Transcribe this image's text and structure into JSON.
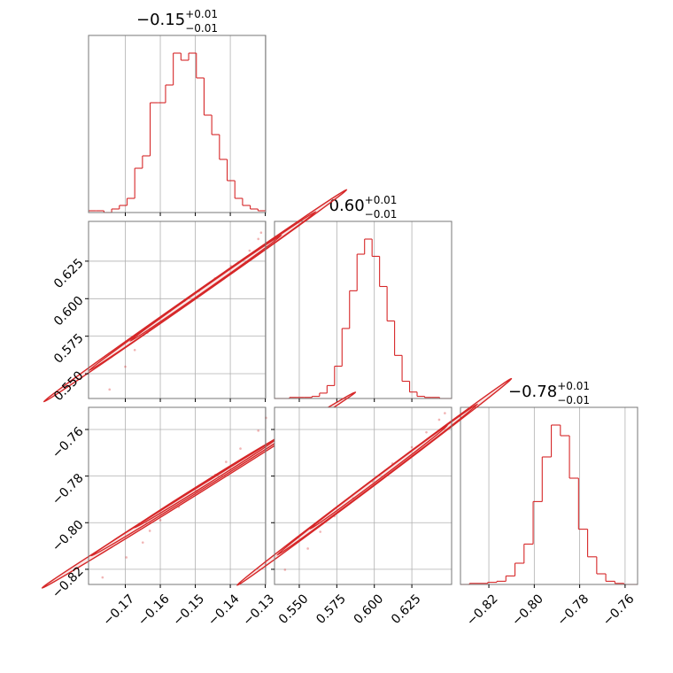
{
  "figure": {
    "colors": {
      "series": "#d62728",
      "frame": "#777777",
      "grid": "#b0b0b0",
      "background": "#ffffff"
    }
  },
  "chart_data": [
    {
      "id": "hist_p1",
      "type": "histogram",
      "title": {
        "median": "−0.15",
        "plus": "+0.01",
        "minus": "−0.01"
      },
      "x_range": [
        -0.1805,
        -0.1299
      ],
      "xticks": [
        -0.17,
        -0.16,
        -0.15,
        -0.14,
        -0.13
      ],
      "xtick_labels": [
        "−0.17",
        "−0.16",
        "−0.15",
        "−0.14",
        "−0.13"
      ],
      "bin_edges": [
        -0.1805,
        -0.1783,
        -0.1761,
        -0.1739,
        -0.1717,
        -0.1695,
        -0.1673,
        -0.1651,
        -0.1629,
        -0.1607,
        -0.1585,
        -0.1563,
        -0.1541,
        -0.1519,
        -0.1497,
        -0.1475,
        -0.1453,
        -0.1431,
        -0.1409,
        -0.1387,
        -0.1365,
        -0.1343,
        -0.1321,
        -0.1299
      ],
      "counts": [
        1,
        1,
        0,
        2,
        4,
        8,
        25,
        32,
        62,
        62,
        72,
        90,
        86,
        90,
        76,
        55,
        44,
        30,
        18,
        8,
        4,
        2,
        1
      ],
      "grid": true
    },
    {
      "id": "hist_p2",
      "type": "histogram",
      "title": {
        "median": "0.60",
        "plus": "+0.01",
        "minus": "−0.01"
      },
      "x_range": [
        0.5335,
        0.6515
      ],
      "xticks": [
        0.55,
        0.575,
        0.6,
        0.625
      ],
      "xtick_labels": [
        "0.550",
        "0.575",
        "0.600",
        "0.625"
      ],
      "bin_edges": [
        0.5335,
        0.5385,
        0.5435,
        0.5485,
        0.5535,
        0.5585,
        0.5635,
        0.5685,
        0.5735,
        0.5785,
        0.5835,
        0.5885,
        0.5935,
        0.5985,
        0.6035,
        0.6085,
        0.6135,
        0.6185,
        0.6235,
        0.6285,
        0.6335,
        0.6385,
        0.6435,
        0.6515
      ],
      "counts": [
        0,
        0,
        1,
        1,
        1,
        2,
        5,
        12,
        30,
        65,
        100,
        134,
        148,
        132,
        104,
        72,
        40,
        16,
        6,
        2,
        1,
        1,
        0
      ],
      "grid": true
    },
    {
      "id": "hist_p3",
      "type": "histogram",
      "title": {
        "median": "−0.78",
        "plus": "+0.01",
        "minus": "−0.01"
      },
      "x_range": [
        -0.8325,
        -0.7545
      ],
      "xticks": [
        -0.82,
        -0.8,
        -0.78,
        -0.76
      ],
      "xtick_labels": [
        "−0.82",
        "−0.80",
        "−0.78",
        "−0.76"
      ],
      "bin_edges": [
        -0.8325,
        -0.8285,
        -0.8245,
        -0.8205,
        -0.8165,
        -0.8125,
        -0.8085,
        -0.8045,
        -0.8005,
        -0.7965,
        -0.7925,
        -0.7885,
        -0.7845,
        -0.7805,
        -0.7765,
        -0.7725,
        -0.7685,
        -0.7645,
        -0.7605,
        -0.7545
      ],
      "counts": [
        0,
        1,
        1,
        2,
        3,
        8,
        20,
        38,
        78,
        120,
        150,
        140,
        100,
        52,
        26,
        10,
        3,
        1,
        0
      ],
      "grid": true
    },
    {
      "id": "scatter_p1_p2",
      "type": "scatter",
      "x_range": [
        -0.1805,
        -0.1299
      ],
      "y_range": [
        0.5335,
        0.6515
      ],
      "xticks": [
        -0.17,
        -0.16,
        -0.15,
        -0.14,
        -0.13
      ],
      "yticks": [
        0.55,
        0.575,
        0.6,
        0.625
      ],
      "ytick_labels": [
        "0.550",
        "0.575",
        "0.600",
        "0.625"
      ],
      "points": [
        [
          -0.1745,
          0.5395
        ],
        [
          -0.17,
          0.5547
        ],
        [
          -0.1673,
          0.5658
        ],
        [
          -0.1637,
          0.5774
        ],
        [
          -0.163,
          0.5798
        ],
        [
          -0.1572,
          0.5918
        ],
        [
          -0.1531,
          0.5986
        ],
        [
          -0.149,
          0.6051
        ],
        [
          -0.1444,
          0.6135
        ],
        [
          -0.1398,
          0.6217
        ],
        [
          -0.1345,
          0.632
        ],
        [
          -0.132,
          0.6398
        ],
        [
          -0.1312,
          0.644
        ]
      ],
      "contours": [
        {
          "level": 1,
          "center": [
            -0.15,
            0.602
          ],
          "angle": 35.0,
          "rx": 0.024,
          "ry": 0.003
        },
        {
          "level": 2,
          "center": [
            -0.148,
            0.605
          ],
          "angle": 35.0,
          "rx": 0.018,
          "ry": 0.0022
        },
        {
          "level": 3,
          "center": [
            -0.147,
            0.607
          ],
          "angle": 35.0,
          "rx": 0.012,
          "ry": 0.0016
        }
      ],
      "grid": true
    },
    {
      "id": "scatter_p1_p3",
      "type": "scatter",
      "x_range": [
        -0.1805,
        -0.1299
      ],
      "y_range": [
        -0.8265,
        -0.7505
      ],
      "xticks": [
        -0.17,
        -0.16,
        -0.15,
        -0.14,
        -0.13
      ],
      "xtick_labels": [
        "−0.17",
        "−0.16",
        "−0.15",
        "−0.14",
        "−0.13"
      ],
      "yticks": [
        -0.82,
        -0.8,
        -0.78,
        -0.76
      ],
      "ytick_labels": [
        "−0.82",
        "−0.80",
        "−0.78",
        "−0.76"
      ],
      "points": [
        [
          -0.1765,
          -0.8235
        ],
        [
          -0.1697,
          -0.8149
        ],
        [
          -0.165,
          -0.8085
        ],
        [
          -0.163,
          -0.8035
        ],
        [
          -0.16,
          -0.7989
        ],
        [
          -0.1547,
          -0.7932
        ],
        [
          -0.1496,
          -0.7864
        ],
        [
          -0.1443,
          -0.7795
        ],
        [
          -0.1412,
          -0.7739
        ],
        [
          -0.1371,
          -0.7682
        ],
        [
          -0.132,
          -0.7605
        ],
        [
          -0.1298,
          -0.755
        ]
      ],
      "contours": [
        {
          "level": 1,
          "center": [
            -0.149,
            -0.786
          ],
          "angle": 32.0,
          "rx": 0.024,
          "ry": 0.0028
        },
        {
          "level": 2,
          "center": [
            -0.148,
            -0.7845
          ],
          "angle": 32.0,
          "rx": 0.017,
          "ry": 0.002
        },
        {
          "level": 3,
          "center": [
            -0.147,
            -0.783
          ],
          "angle": 32.0,
          "rx": 0.011,
          "ry": 0.0014
        }
      ],
      "grid": true
    },
    {
      "id": "scatter_p2_p3",
      "type": "scatter",
      "x_range": [
        0.5335,
        0.6515
      ],
      "y_range": [
        -0.8265,
        -0.7505
      ],
      "xticks": [
        0.55,
        0.575,
        0.6,
        0.625
      ],
      "xtick_labels": [
        "0.550",
        "0.575",
        "0.600",
        "0.625"
      ],
      "yticks": [
        -0.82,
        -0.8,
        -0.78,
        -0.76
      ],
      "points": [
        [
          0.5405,
          -0.8202
        ],
        [
          0.5557,
          -0.8111
        ],
        [
          0.564,
          -0.8039
        ],
        [
          0.5735,
          -0.7972
        ],
        [
          0.5859,
          -0.7895
        ],
        [
          0.5988,
          -0.7823
        ],
        [
          0.6121,
          -0.7746
        ],
        [
          0.625,
          -0.7676
        ],
        [
          0.6347,
          -0.7612
        ],
        [
          0.6432,
          -0.7558
        ],
        [
          0.647,
          -0.753
        ]
      ],
      "contours": [
        {
          "level": 1,
          "center": [
            0.6,
            -0.7825
          ],
          "angle": 37.0,
          "rx": 0.052,
          "ry": 0.0024
        },
        {
          "level": 2,
          "center": [
            0.602,
            -0.7815
          ],
          "angle": 37.0,
          "rx": 0.038,
          "ry": 0.0017
        },
        {
          "level": 3,
          "center": [
            0.603,
            -0.7805
          ],
          "angle": 37.0,
          "rx": 0.026,
          "ry": 0.0012
        }
      ],
      "grid": true
    }
  ]
}
